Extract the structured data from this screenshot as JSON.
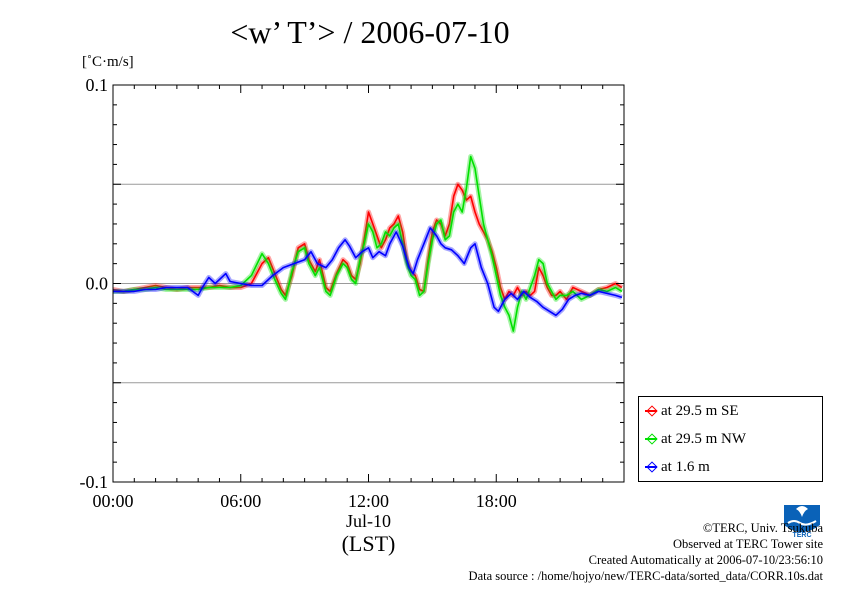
{
  "title": "<w’ T’> / 2006-07-10",
  "unit_label": "[˚C·m/s]",
  "colors": {
    "se": "#ff0000",
    "nw": "#00e000",
    "low": "#0000ff",
    "grid": "#9a9a9a"
  },
  "credits": {
    "line1": "©TERC, Univ. Tsukuba",
    "line2": "Observed at TERC Tower site",
    "line3": "Created Automatically at 2006-07-10/23:56:10",
    "line4": "Data source : /home/hojyo/new/TERC-data/sorted_data/CORR.10s.dat"
  },
  "logo_text": "TERC",
  "chart_data": {
    "type": "line",
    "x_unit": "hour (LST)",
    "xlim": [
      0,
      24
    ],
    "ylim": [
      -0.1,
      0.1
    ],
    "x_ticks": [
      {
        "x": 0,
        "label": "00:00"
      },
      {
        "x": 6,
        "label": "06:00"
      },
      {
        "x": 12,
        "label": "12:00"
      },
      {
        "x": 18,
        "label": "18:00"
      }
    ],
    "x_date_label": "Jul-10",
    "x_axis_label": "(LST)",
    "y_ticks": [
      {
        "y": 0.1,
        "label": "0.1"
      },
      {
        "y": 0.0,
        "label": "0.0"
      },
      {
        "y": -0.1,
        "label": "-0.1"
      }
    ],
    "gridlines_y": [
      0.05,
      0.0,
      -0.05
    ],
    "legend_position": "right-bottom, outside plot",
    "series": [
      {
        "name": "at 29.5 m SE",
        "color": "#ff0000",
        "points": [
          [
            0,
            -0.003
          ],
          [
            0.5,
            -0.004
          ],
          [
            1,
            -0.003
          ],
          [
            1.5,
            -0.002
          ],
          [
            2,
            -0.001
          ],
          [
            2.5,
            -0.002
          ],
          [
            3,
            -0.003
          ],
          [
            3.5,
            -0.002
          ],
          [
            4,
            -0.002
          ],
          [
            4.5,
            -0.002
          ],
          [
            5,
            -0.001
          ],
          [
            5.5,
            -0.002
          ],
          [
            6,
            -0.002
          ],
          [
            6.5,
            0
          ],
          [
            7,
            0.01
          ],
          [
            7.3,
            0.013
          ],
          [
            7.6,
            0.005
          ],
          [
            7.9,
            -0.003
          ],
          [
            8.1,
            -0.006
          ],
          [
            8.4,
            0.004
          ],
          [
            8.7,
            0.018
          ],
          [
            9,
            0.02
          ],
          [
            9.2,
            0.012
          ],
          [
            9.5,
            0.006
          ],
          [
            9.7,
            0.012
          ],
          [
            10,
            -0.002
          ],
          [
            10.2,
            -0.004
          ],
          [
            10.5,
            0.005
          ],
          [
            10.8,
            0.012
          ],
          [
            11,
            0.01
          ],
          [
            11.2,
            0.004
          ],
          [
            11.4,
            0.002
          ],
          [
            11.6,
            0.01
          ],
          [
            11.8,
            0.022
          ],
          [
            12,
            0.036
          ],
          [
            12.2,
            0.03
          ],
          [
            12.4,
            0.024
          ],
          [
            12.6,
            0.018
          ],
          [
            12.8,
            0.022
          ],
          [
            13,
            0.028
          ],
          [
            13.2,
            0.03
          ],
          [
            13.4,
            0.034
          ],
          [
            13.6,
            0.026
          ],
          [
            13.8,
            0.012
          ],
          [
            14,
            0.006
          ],
          [
            14.2,
            0.004
          ],
          [
            14.4,
            -0.003
          ],
          [
            14.6,
            -0.004
          ],
          [
            14.8,
            0.012
          ],
          [
            15,
            0.026
          ],
          [
            15.2,
            0.032
          ],
          [
            15.4,
            0.03
          ],
          [
            15.6,
            0.024
          ],
          [
            15.8,
            0.03
          ],
          [
            16,
            0.044
          ],
          [
            16.2,
            0.05
          ],
          [
            16.4,
            0.047
          ],
          [
            16.6,
            0.042
          ],
          [
            16.8,
            0.044
          ],
          [
            17,
            0.036
          ],
          [
            17.2,
            0.03
          ],
          [
            17.4,
            0.026
          ],
          [
            17.6,
            0.022
          ],
          [
            17.8,
            0.016
          ],
          [
            18,
            0.008
          ],
          [
            18.2,
            -0.002
          ],
          [
            18.4,
            -0.008
          ],
          [
            18.6,
            -0.004
          ],
          [
            18.8,
            -0.006
          ],
          [
            19,
            -0.002
          ],
          [
            19.2,
            -0.006
          ],
          [
            19.4,
            -0.004
          ],
          [
            19.6,
            -0.006
          ],
          [
            19.8,
            -0.004
          ],
          [
            20,
            0.008
          ],
          [
            20.2,
            0.004
          ],
          [
            20.4,
            -0.002
          ],
          [
            20.6,
            -0.006
          ],
          [
            20.8,
            -0.006
          ],
          [
            21,
            -0.004
          ],
          [
            21.3,
            -0.008
          ],
          [
            21.6,
            -0.002
          ],
          [
            22,
            -0.004
          ],
          [
            22.4,
            -0.006
          ],
          [
            22.8,
            -0.003
          ],
          [
            23.2,
            -0.002
          ],
          [
            23.6,
            0
          ],
          [
            23.9,
            -0.002
          ]
        ]
      },
      {
        "name": "at 29.5 m NW",
        "color": "#00e000",
        "points": [
          [
            0,
            -0.004
          ],
          [
            0.5,
            -0.004
          ],
          [
            1,
            -0.003
          ],
          [
            1.5,
            -0.003
          ],
          [
            2,
            -0.002
          ],
          [
            2.5,
            -0.003
          ],
          [
            3,
            -0.003
          ],
          [
            3.5,
            -0.003
          ],
          [
            4,
            -0.003
          ],
          [
            4.5,
            -0.002
          ],
          [
            5,
            -0.002
          ],
          [
            5.5,
            -0.002
          ],
          [
            6,
            -0.001
          ],
          [
            6.5,
            0.004
          ],
          [
            7,
            0.015
          ],
          [
            7.3,
            0.01
          ],
          [
            7.6,
            0.002
          ],
          [
            7.9,
            -0.005
          ],
          [
            8.1,
            -0.008
          ],
          [
            8.4,
            0.006
          ],
          [
            8.7,
            0.016
          ],
          [
            9,
            0.018
          ],
          [
            9.2,
            0.01
          ],
          [
            9.5,
            0.004
          ],
          [
            9.7,
            0.008
          ],
          [
            10,
            -0.004
          ],
          [
            10.2,
            -0.006
          ],
          [
            10.5,
            0.004
          ],
          [
            10.8,
            0.01
          ],
          [
            11,
            0.008
          ],
          [
            11.2,
            0.002
          ],
          [
            11.4,
            0
          ],
          [
            11.6,
            0.012
          ],
          [
            11.8,
            0.02
          ],
          [
            12,
            0.03
          ],
          [
            12.2,
            0.026
          ],
          [
            12.4,
            0.018
          ],
          [
            12.6,
            0.02
          ],
          [
            12.8,
            0.026
          ],
          [
            13,
            0.024
          ],
          [
            13.2,
            0.028
          ],
          [
            13.4,
            0.03
          ],
          [
            13.6,
            0.02
          ],
          [
            13.8,
            0.01
          ],
          [
            14,
            0.004
          ],
          [
            14.2,
            0.002
          ],
          [
            14.4,
            -0.006
          ],
          [
            14.6,
            -0.004
          ],
          [
            14.8,
            0.01
          ],
          [
            15,
            0.022
          ],
          [
            15.2,
            0.03
          ],
          [
            15.4,
            0.032
          ],
          [
            15.6,
            0.022
          ],
          [
            15.8,
            0.024
          ],
          [
            16,
            0.036
          ],
          [
            16.2,
            0.04
          ],
          [
            16.4,
            0.036
          ],
          [
            16.6,
            0.048
          ],
          [
            16.8,
            0.064
          ],
          [
            17,
            0.058
          ],
          [
            17.2,
            0.044
          ],
          [
            17.4,
            0.03
          ],
          [
            17.6,
            0.022
          ],
          [
            17.8,
            0.014
          ],
          [
            18,
            0.004
          ],
          [
            18.2,
            -0.006
          ],
          [
            18.4,
            -0.012
          ],
          [
            18.6,
            -0.016
          ],
          [
            18.8,
            -0.024
          ],
          [
            19,
            -0.012
          ],
          [
            19.2,
            -0.004
          ],
          [
            19.4,
            -0.008
          ],
          [
            19.6,
            -0.002
          ],
          [
            19.8,
            0.004
          ],
          [
            20,
            0.012
          ],
          [
            20.2,
            0.01
          ],
          [
            20.4,
            0
          ],
          [
            20.6,
            -0.004
          ],
          [
            20.8,
            -0.008
          ],
          [
            21,
            -0.006
          ],
          [
            21.3,
            -0.006
          ],
          [
            21.6,
            -0.004
          ],
          [
            22,
            -0.008
          ],
          [
            22.4,
            -0.006
          ],
          [
            22.8,
            -0.003
          ],
          [
            23.2,
            -0.004
          ],
          [
            23.6,
            -0.002
          ],
          [
            23.9,
            -0.004
          ]
        ]
      },
      {
        "name": "at 1.6 m",
        "color": "#0000ff",
        "points": [
          [
            0,
            -0.004
          ],
          [
            0.5,
            -0.004
          ],
          [
            1,
            -0.004
          ],
          [
            1.5,
            -0.003
          ],
          [
            2,
            -0.003
          ],
          [
            2.5,
            -0.002
          ],
          [
            3,
            -0.002
          ],
          [
            3.5,
            -0.002
          ],
          [
            4,
            -0.006
          ],
          [
            4.2,
            -0.002
          ],
          [
            4.5,
            0.003
          ],
          [
            4.8,
            0
          ],
          [
            5,
            0.002
          ],
          [
            5.3,
            0.005
          ],
          [
            5.5,
            0.001
          ],
          [
            6,
            0
          ],
          [
            6.5,
            -0.001
          ],
          [
            7,
            -0.001
          ],
          [
            7.5,
            0.004
          ],
          [
            8,
            0.008
          ],
          [
            8.5,
            0.01
          ],
          [
            9,
            0.012
          ],
          [
            9.3,
            0.016
          ],
          [
            9.6,
            0.01
          ],
          [
            10,
            0.008
          ],
          [
            10.3,
            0.012
          ],
          [
            10.6,
            0.018
          ],
          [
            10.9,
            0.022
          ],
          [
            11.1,
            0.019
          ],
          [
            11.4,
            0.013
          ],
          [
            11.7,
            0.016
          ],
          [
            12,
            0.018
          ],
          [
            12.2,
            0.013
          ],
          [
            12.5,
            0.016
          ],
          [
            12.8,
            0.014
          ],
          [
            13,
            0.02
          ],
          [
            13.3,
            0.026
          ],
          [
            13.6,
            0.019
          ],
          [
            13.9,
            0.008
          ],
          [
            14.1,
            0.005
          ],
          [
            14.3,
            0.012
          ],
          [
            14.6,
            0.02
          ],
          [
            14.9,
            0.028
          ],
          [
            15.2,
            0.024
          ],
          [
            15.4,
            0.02
          ],
          [
            15.6,
            0.018
          ],
          [
            15.9,
            0.017
          ],
          [
            16.2,
            0.014
          ],
          [
            16.5,
            0.01
          ],
          [
            16.8,
            0.018
          ],
          [
            17,
            0.02
          ],
          [
            17.3,
            0.008
          ],
          [
            17.6,
            0
          ],
          [
            17.9,
            -0.012
          ],
          [
            18.1,
            -0.014
          ],
          [
            18.4,
            -0.008
          ],
          [
            18.7,
            -0.005
          ],
          [
            19,
            -0.008
          ],
          [
            19.3,
            -0.004
          ],
          [
            19.6,
            -0.007
          ],
          [
            19.9,
            -0.009
          ],
          [
            20.2,
            -0.012
          ],
          [
            20.5,
            -0.014
          ],
          [
            20.8,
            -0.016
          ],
          [
            21.1,
            -0.013
          ],
          [
            21.4,
            -0.008
          ],
          [
            21.7,
            -0.006
          ],
          [
            22,
            -0.005
          ],
          [
            22.4,
            -0.006
          ],
          [
            22.8,
            -0.004
          ],
          [
            23.2,
            -0.005
          ],
          [
            23.6,
            -0.006
          ],
          [
            23.9,
            -0.007
          ]
        ]
      }
    ]
  }
}
